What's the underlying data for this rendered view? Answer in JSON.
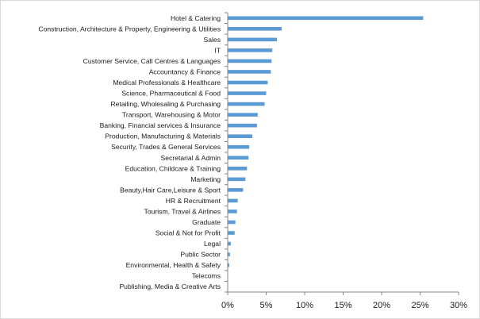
{
  "chart_data": {
    "type": "bar",
    "orientation": "horizontal",
    "title": "",
    "xlabel": "",
    "ylabel": "",
    "categories": [
      "Hotel & Catering",
      "Construction, Architecture & Property, Engineering & Utilities",
      "Sales",
      "IT",
      "Customer Service, Call Centres & Languages",
      "Accountancy & Finance",
      "Medical Professionals & Healthcare",
      "Science, Pharmaceutical & Food",
      "Retailing, Wholesaling & Purchasing",
      "Transport, Warehousing & Motor",
      "Banking, Financial services & Insurance",
      "Production, Manufacturing & Materials",
      "Security, Trades & General Services",
      "Secretarial & Admin",
      "Education, Childcare & Training",
      "Marketing",
      "Beauty,Hair Care,Leisure & Sport",
      "HR & Recruitment",
      "Tourism, Travel & Airlines",
      "Graduate",
      "Social & Not for Profit",
      "Legal",
      "Public Sector",
      "Environmental, Health & Safety",
      "Telecoms",
      "Publishing, Media & Creative Arts"
    ],
    "values": [
      25.4,
      7.0,
      6.4,
      5.8,
      5.7,
      5.6,
      5.2,
      5.0,
      4.8,
      3.9,
      3.8,
      3.2,
      2.8,
      2.7,
      2.5,
      2.3,
      2.0,
      1.3,
      1.2,
      1.0,
      0.9,
      0.4,
      0.3,
      0.2,
      0.05,
      0.0
    ],
    "xlim": [
      0,
      30
    ],
    "x_ticks": [
      "0%",
      "5%",
      "10%",
      "15%",
      "20%",
      "25%",
      "30%"
    ],
    "series_color": "#5b9bd5",
    "grid": false,
    "legend": "none"
  }
}
